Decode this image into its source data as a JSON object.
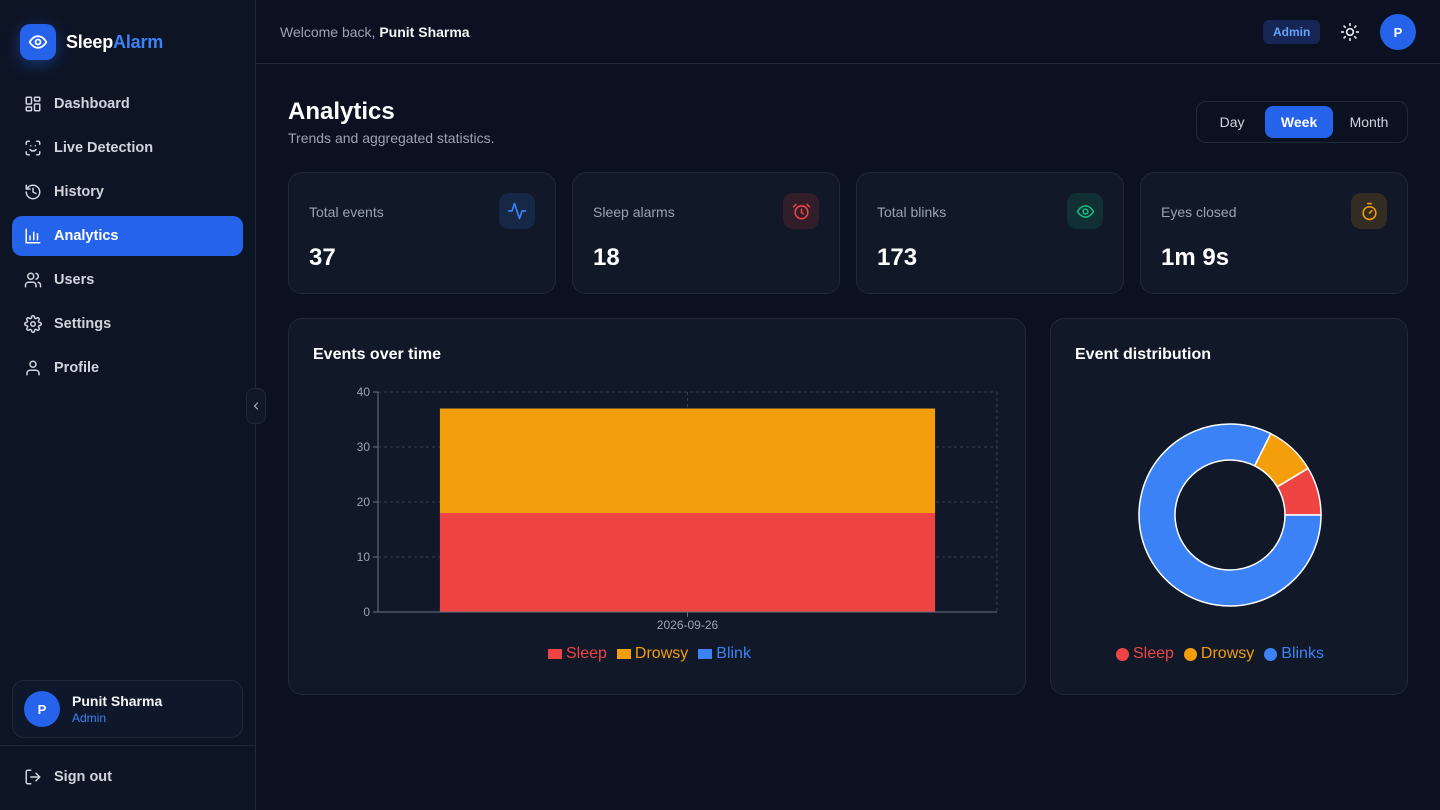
{
  "app": {
    "name_part1": "Sleep",
    "name_part2": "Alarm"
  },
  "sidebar": {
    "items": [
      {
        "label": "Dashboard",
        "icon": "grid-icon"
      },
      {
        "label": "Live Detection",
        "icon": "scan-face-icon"
      },
      {
        "label": "History",
        "icon": "history-icon"
      },
      {
        "label": "Analytics",
        "icon": "bar-chart-icon",
        "active": true
      },
      {
        "label": "Users",
        "icon": "users-icon"
      },
      {
        "label": "Settings",
        "icon": "gear-icon"
      },
      {
        "label": "Profile",
        "icon": "user-icon"
      }
    ],
    "user": {
      "initial": "P",
      "name": "Punit Sharma",
      "role": "Admin"
    },
    "signout": "Sign out"
  },
  "topbar": {
    "welcome_prefix": "Welcome back, ",
    "welcome_name": "Punit Sharma",
    "role_badge": "Admin",
    "avatar_initial": "P"
  },
  "page": {
    "title": "Analytics",
    "subtitle": "Trends and aggregated statistics.",
    "ranges": [
      "Day",
      "Week",
      "Month"
    ],
    "active_range": "Week"
  },
  "stats": [
    {
      "label": "Total events",
      "value": "37",
      "icon": "activity-icon",
      "color": "#3b82f6"
    },
    {
      "label": "Sleep alarms",
      "value": "18",
      "icon": "alarm-clock-icon",
      "color": "#ef4444"
    },
    {
      "label": "Total blinks",
      "value": "173",
      "icon": "eye-icon",
      "color": "#10b981"
    },
    {
      "label": "Eyes closed",
      "value": "1m 9s",
      "icon": "timer-icon",
      "color": "#f59e0b"
    }
  ],
  "colors": {
    "sleep": "#ef4444",
    "drowsy": "#f59e0b",
    "blink": "#3b82f6",
    "accent": "#2563eb"
  },
  "events_chart": {
    "title": "Events over time",
    "legend": [
      "Sleep",
      "Drowsy",
      "Blink"
    ]
  },
  "distribution_chart": {
    "title": "Event distribution",
    "legend": [
      "Sleep",
      "Drowsy",
      "Blinks"
    ]
  },
  "chart_data": [
    {
      "type": "bar",
      "stacked": true,
      "title": "Events over time",
      "categories": [
        "2026-09-26"
      ],
      "series": [
        {
          "name": "Sleep",
          "values": [
            18
          ]
        },
        {
          "name": "Drowsy",
          "values": [
            19
          ]
        },
        {
          "name": "Blink",
          "values": [
            0
          ]
        }
      ],
      "ylim": [
        0,
        40
      ],
      "yticks": [
        0,
        10,
        20,
        30,
        40
      ],
      "grid": true,
      "legend": "bottom"
    },
    {
      "type": "pie",
      "donut": true,
      "title": "Event distribution",
      "labels": [
        "Sleep",
        "Drowsy",
        "Blinks"
      ],
      "values": [
        18,
        19,
        173
      ],
      "legend": "bottom"
    }
  ]
}
